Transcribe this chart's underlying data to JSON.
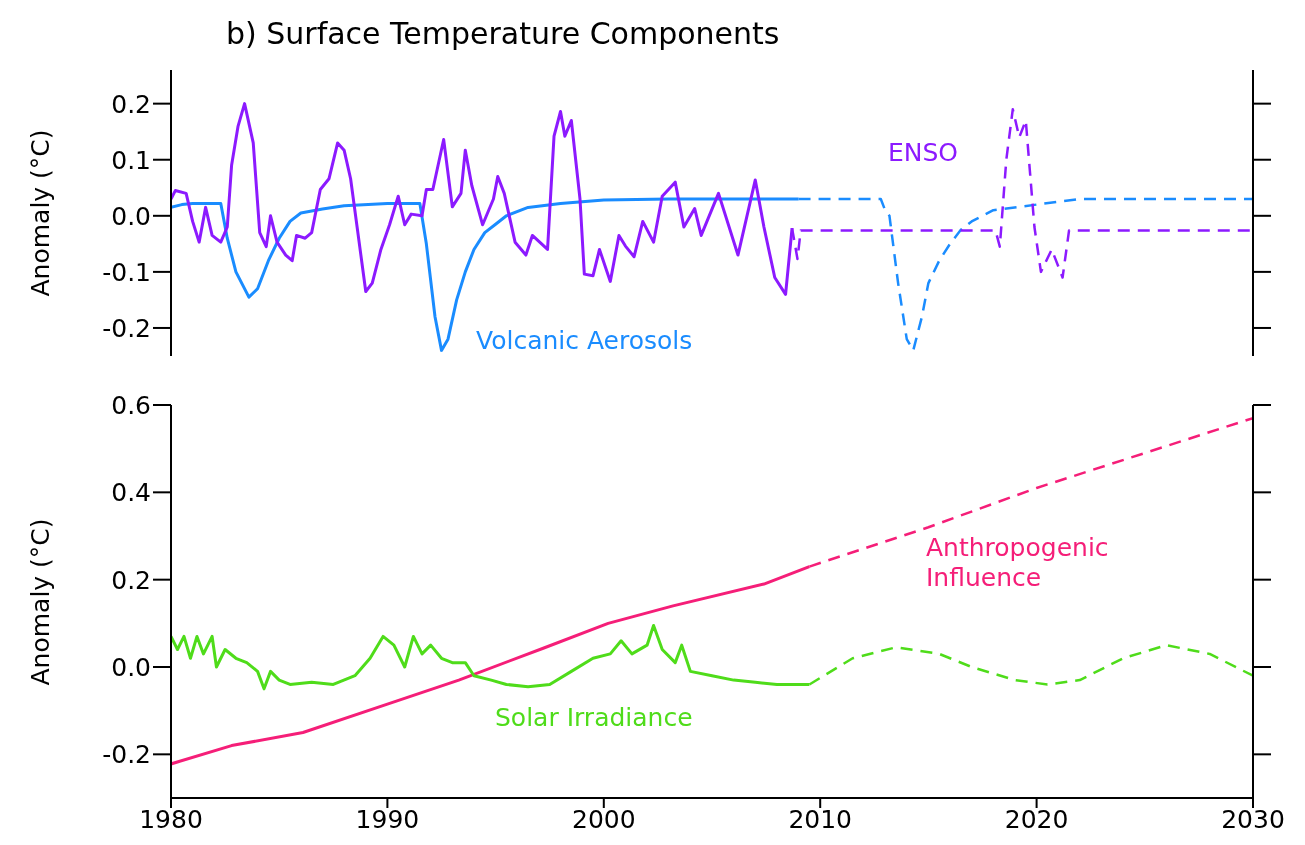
{
  "chart_data": [
    {
      "type": "line",
      "title": "b) Surface Temperature Components",
      "ylabel": "Anomaly (°C)",
      "xlim": [
        1980,
        2030
      ],
      "xticks": [
        1980,
        1990,
        2000,
        2010,
        2020,
        2030
      ],
      "ylim": [
        -0.25,
        0.26
      ],
      "yticks": [
        -0.2,
        -0.1,
        {
          "value": 0,
          "label": "0.0"
        },
        0.1,
        0.2
      ],
      "tick_labels": "y",
      "series": [
        {
          "name": "Volcanic Aerosols",
          "color": "#1a8cff",
          "line_style": "solid",
          "x": [
            1980,
            1980.5,
            1981,
            1982.3,
            1982.6,
            1983,
            1983.6,
            1984,
            1984.5,
            1985,
            1985.5,
            1986,
            1987,
            1988,
            1990,
            1991.5,
            1991.8,
            1992.2,
            1992.5,
            1992.8,
            1993.2,
            1993.6,
            1994,
            1994.5,
            1995,
            1995.5,
            1996.5,
            1998,
            2000,
            2003,
            2009
          ],
          "values": [
            0.015,
            0.02,
            0.022,
            0.022,
            -0.04,
            -0.1,
            -0.145,
            -0.13,
            -0.08,
            -0.04,
            -0.01,
            0.005,
            0.012,
            0.018,
            0.022,
            0.022,
            -0.05,
            -0.18,
            -0.24,
            -0.22,
            -0.15,
            -0.1,
            -0.06,
            -0.03,
            -0.015,
            0,
            0.015,
            0.022,
            0.028,
            0.03,
            0.03
          ]
        },
        {
          "color": "#1a8cff",
          "line_style": "dashed",
          "x": [
            2009,
            2012.8,
            2013,
            2013.2,
            2013.6,
            2014,
            2014.3,
            2014.7,
            2015,
            2015.5,
            2016,
            2016.5,
            2017,
            2018,
            2020,
            2022,
            2030
          ],
          "values": [
            0.03,
            0.03,
            0.01,
            0.0,
            -0.12,
            -0.22,
            -0.24,
            -0.18,
            -0.12,
            -0.08,
            -0.05,
            -0.025,
            -0.01,
            0.01,
            0.02,
            0.03,
            0.03
          ]
        },
        {
          "name": "ENSO",
          "color": "#8c1aff",
          "line_style": "solid",
          "x": [
            1980,
            1980.2,
            1980.7,
            1981,
            1981.3,
            1981.6,
            1981.9,
            1982.3,
            1982.6,
            1982.8,
            1983.1,
            1983.4,
            1983.8,
            1984.1,
            1984.4,
            1984.6,
            1984.9,
            1985.3,
            1985.6,
            1985.8,
            1986.2,
            1986.5,
            1986.9,
            1987.3,
            1987.7,
            1988,
            1988.3,
            1988.6,
            1989,
            1989.3,
            1989.7,
            1990.1,
            1990.5,
            1990.8,
            1991.1,
            1991.6,
            1991.8,
            1992.1,
            1992.6,
            1993,
            1993.4,
            1993.6,
            1993.9,
            1994.4,
            1994.9,
            1995.1,
            1995.4,
            1995.9,
            1996.4,
            1996.7,
            1997.4,
            1997.7,
            1998,
            1998.2,
            1998.5,
            1998.9,
            1999.1,
            1999.5,
            1999.8,
            2000.3,
            2000.7,
            2001,
            2001.4,
            2001.8,
            2002.3,
            2002.7,
            2003.3,
            2003.7,
            2004.2,
            2004.5,
            2005.3,
            2006.2,
            2007,
            2007.4,
            2007.9,
            2008.4,
            2008.7
          ],
          "values": [
            0.03,
            0.045,
            0.04,
            -0.01,
            -0.047,
            0.015,
            -0.035,
            -0.047,
            -0.02,
            0.09,
            0.16,
            0.2,
            0.13,
            -0.03,
            -0.055,
            0,
            -0.047,
            -0.07,
            -0.08,
            -0.035,
            -0.04,
            -0.03,
            0.047,
            0.066,
            0.13,
            0.117,
            0.066,
            -0.02,
            -0.135,
            -0.12,
            -0.06,
            -0.016,
            0.035,
            -0.016,
            0.003,
            0,
            0.047,
            0.047,
            0.136,
            0.016,
            0.04,
            0.117,
            0.054,
            -0.016,
            0.03,
            0.07,
            0.04,
            -0.047,
            -0.07,
            -0.035,
            -0.06,
            0.142,
            0.186,
            0.142,
            0.17,
            0.03,
            -0.104,
            -0.107,
            -0.06,
            -0.117,
            -0.035,
            -0.054,
            -0.073,
            -0.01,
            -0.047,
            0.035,
            0.06,
            -0.02,
            0.013,
            -0.035,
            0.04,
            -0.07,
            0.064,
            -0.02,
            -0.11,
            -0.14,
            -0.022
          ]
        },
        {
          "color": "#8c1aff",
          "line_style": "dashed",
          "x": [
            2008.7,
            2008.95,
            2009.1,
            2018.1,
            2018.3,
            2018.6,
            2018.9,
            2019.2,
            2019.5,
            2019.9,
            2020.2,
            2020.7,
            2021.2,
            2021.5,
            2030
          ],
          "values": [
            -0.022,
            -0.077,
            -0.026,
            -0.026,
            -0.055,
            0.1,
            0.19,
            0.14,
            0.17,
            -0.02,
            -0.1,
            -0.06,
            -0.11,
            -0.026,
            -0.026
          ]
        }
      ]
    },
    {
      "type": "line",
      "ylabel": "Anomaly (°C)",
      "xlim": [
        1980,
        2030
      ],
      "xticks": [
        1980,
        1990,
        2000,
        2010,
        2020,
        2030
      ],
      "ylim": [
        -0.3,
        0.6
      ],
      "yticks": [
        -0.2,
        {
          "value": 0,
          "label": "0.0"
        },
        0.2,
        0.4,
        0.6
      ],
      "series": [
        {
          "name": "Anthropogenic Influence",
          "color": "#f51e78",
          "line_style": "solid",
          "x": [
            1980,
            1982.8,
            1986.1,
            1990,
            1993.3,
            1997.2,
            2000.2,
            2003.2,
            2007.4,
            2009.5
          ],
          "values": [
            -0.222,
            -0.18,
            -0.15,
            -0.085,
            -0.03,
            0.043,
            0.1,
            0.14,
            0.19,
            0.23
          ]
        },
        {
          "color": "#f51e78",
          "line_style": "dashed",
          "x": [
            2009.5,
            2015,
            2020,
            2025,
            2030
          ],
          "values": [
            0.23,
            0.32,
            0.41,
            0.49,
            0.57
          ]
        },
        {
          "name": "Solar Irradiance",
          "color": "#4fdc1a",
          "line_style": "solid",
          "x": [
            1980,
            1980.3,
            1980.6,
            1980.9,
            1981.2,
            1981.5,
            1981.9,
            1982.1,
            1982.5,
            1983,
            1983.5,
            1984,
            1984.3,
            1984.6,
            1985,
            1985.5,
            1986.5,
            1987.5,
            1988.5,
            1989.2,
            1989.8,
            1990.3,
            1990.8,
            1991.2,
            1991.6,
            1992,
            1992.5,
            1993,
            1993.6,
            1994,
            1994.8,
            1995.5,
            1996.5,
            1997.5,
            1998.5,
            1999.5,
            2000.3,
            2000.8,
            2001.3,
            2002,
            2002.3,
            2002.7,
            2003.3,
            2003.6,
            2004,
            2005,
            2006,
            2007,
            2008,
            2009.5
          ],
          "values": [
            0.07,
            0.04,
            0.07,
            0.02,
            0.07,
            0.03,
            0.07,
            0,
            0.04,
            0.02,
            0.01,
            -0.01,
            -0.05,
            -0.01,
            -0.03,
            -0.04,
            -0.035,
            -0.04,
            -0.02,
            0.02,
            0.07,
            0.05,
            0,
            0.07,
            0.03,
            0.05,
            0.02,
            0.01,
            0.01,
            -0.02,
            -0.03,
            -0.04,
            -0.045,
            -0.04,
            -0.01,
            0.02,
            0.03,
            0.06,
            0.03,
            0.05,
            0.095,
            0.04,
            0.01,
            0.05,
            -0.01,
            -0.02,
            -0.03,
            -0.035,
            -0.04,
            -0.04
          ]
        },
        {
          "color": "#4fdc1a",
          "line_style": "dashed",
          "x": [
            2009.5,
            2011.5,
            2013.5,
            2015.5,
            2017,
            2019,
            2020.5,
            2022,
            2024,
            2026,
            2028,
            2030
          ],
          "values": [
            -0.04,
            0.02,
            0.045,
            0.03,
            0,
            -0.03,
            -0.04,
            -0.03,
            0.02,
            0.05,
            0.03,
            -0.02
          ]
        }
      ]
    }
  ]
}
